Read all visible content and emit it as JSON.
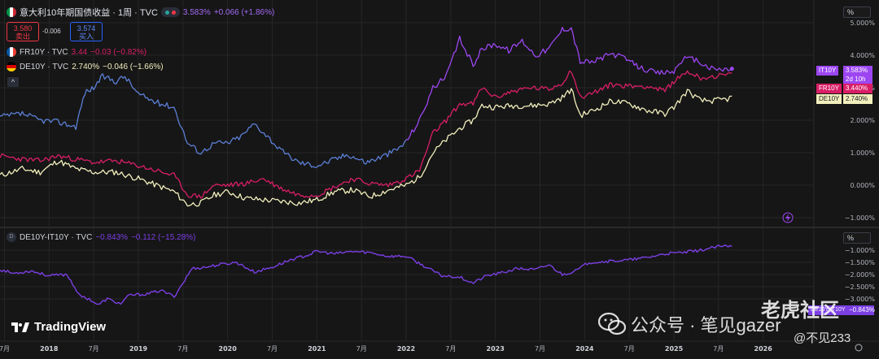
{
  "header": {
    "main_symbol": "意大利10年期国债收益 · 1周 · TVC",
    "main_value": "3.583%",
    "main_change": "+0.066 (+1.86%)",
    "sell_price": "3.580",
    "sell_label": "卖出",
    "spread": "-0.006",
    "buy_price": "3.574",
    "buy_label": "买入",
    "series_fr": "FR10Y · TVC",
    "series_fr_value": "3.44",
    "series_fr_change": "−0.03 (−0.82%)",
    "series_de": "DE10Y · TVC",
    "series_de_value": "2.740%",
    "series_de_change": "−0.046 (−1.66%)",
    "collapse": "^",
    "spread_title": "DE10Y-IT10Y · TVC",
    "spread_value": "−0.843%",
    "spread_change": "−0.112 (−15.28%)",
    "spread_icon_letter": "D"
  },
  "scale_buttons": {
    "top": "%",
    "bottom": "%"
  },
  "price_tags": {
    "it_label": "IT10Y",
    "it_value": "3.583%",
    "it_countdown": "2d 10h",
    "fr_label": "FR10Y",
    "fr_value": "3.440%",
    "de_label": "DE10Y",
    "de_value": "2.740%",
    "spread_label": "DE10Y-IT10Y",
    "spread_value": "−0.843%"
  },
  "branding": {
    "tv": "TradingView"
  },
  "watermark": {
    "community": "老虎社区",
    "wechat": "公众号 · 笔见gazer",
    "handle": "@不见233"
  },
  "colors": {
    "it": "#9c46f2",
    "it_early": "#5b7fd6",
    "fr": "#d91e66",
    "de": "#f2efbd",
    "spread": "#7b3fe4",
    "bg": "#161616",
    "grid": "#262626",
    "axis_text": "#b2b5be"
  },
  "chart_data": [
    {
      "type": "line",
      "title": "意大利10年期国债收益 · 1周 · TVC",
      "y_unit": "%",
      "ylim": [
        -1.0,
        5.0
      ],
      "y_ticks": [
        "5.000%",
        "4.000%",
        "3.000%",
        "2.000%",
        "1.000%",
        "0.000%",
        "−1.000%"
      ],
      "x_range": [
        2017.45,
        2026.55
      ],
      "x_ticks": [
        {
          "t": 2017.5,
          "label": "7月"
        },
        {
          "t": 2018.0,
          "label": "2018"
        },
        {
          "t": 2018.5,
          "label": "7月"
        },
        {
          "t": 2019.0,
          "label": "2019"
        },
        {
          "t": 2019.5,
          "label": "7月"
        },
        {
          "t": 2020.0,
          "label": "2020"
        },
        {
          "t": 2020.5,
          "label": "7月"
        },
        {
          "t": 2021.0,
          "label": "2021"
        },
        {
          "t": 2021.5,
          "label": "7月"
        },
        {
          "t": 2022.0,
          "label": "2022"
        },
        {
          "t": 2022.5,
          "label": "7月"
        },
        {
          "t": 2023.0,
          "label": "2023"
        },
        {
          "t": 2023.5,
          "label": "7月"
        },
        {
          "t": 2024.0,
          "label": "2024"
        },
        {
          "t": 2024.5,
          "label": "7月"
        },
        {
          "t": 2025.0,
          "label": "2025"
        },
        {
          "t": 2025.5,
          "label": "7月"
        },
        {
          "t": 2026.0,
          "label": "2026"
        }
      ],
      "series": [
        {
          "name": "IT10Y",
          "x": [
            2017.45,
            2017.7,
            2017.9,
            2018.1,
            2018.3,
            2018.4,
            2018.5,
            2018.6,
            2018.75,
            2018.85,
            2019.0,
            2019.2,
            2019.4,
            2019.55,
            2019.7,
            2019.85,
            2020.0,
            2020.15,
            2020.3,
            2020.45,
            2020.6,
            2020.8,
            2021.0,
            2021.15,
            2021.35,
            2021.55,
            2021.75,
            2021.9,
            2022.0,
            2022.15,
            2022.3,
            2022.45,
            2022.6,
            2022.75,
            2022.85,
            2023.0,
            2023.15,
            2023.3,
            2023.45,
            2023.6,
            2023.75,
            2023.85,
            2023.95,
            2024.1,
            2024.3,
            2024.45,
            2024.6,
            2024.8,
            2025.0,
            2025.1,
            2025.25,
            2025.4,
            2025.55,
            2025.65
          ],
          "values": [
            2.1,
            2.2,
            2.0,
            1.95,
            1.8,
            2.85,
            3.0,
            3.35,
            3.2,
            3.35,
            2.8,
            2.55,
            2.4,
            1.3,
            1.0,
            1.3,
            1.3,
            1.5,
            1.9,
            1.5,
            1.05,
            0.7,
            0.6,
            0.75,
            0.95,
            0.7,
            0.9,
            1.1,
            1.35,
            2.0,
            3.0,
            3.35,
            4.5,
            3.7,
            4.2,
            4.35,
            4.15,
            4.45,
            4.0,
            4.2,
            4.8,
            4.85,
            3.8,
            3.8,
            4.05,
            3.9,
            3.65,
            3.45,
            3.5,
            3.9,
            3.85,
            3.6,
            3.55,
            3.583
          ]
        },
        {
          "name": "FR10Y",
          "x": [
            2017.45,
            2017.7,
            2017.9,
            2018.1,
            2018.3,
            2018.5,
            2018.75,
            2019.0,
            2019.2,
            2019.4,
            2019.55,
            2019.7,
            2019.85,
            2020.0,
            2020.2,
            2020.4,
            2020.6,
            2020.8,
            2021.0,
            2021.2,
            2021.4,
            2021.6,
            2021.8,
            2022.0,
            2022.15,
            2022.3,
            2022.45,
            2022.6,
            2022.75,
            2022.85,
            2023.0,
            2023.2,
            2023.4,
            2023.6,
            2023.75,
            2023.85,
            2023.95,
            2024.1,
            2024.3,
            2024.5,
            2024.7,
            2024.9,
            2025.0,
            2025.15,
            2025.3,
            2025.45,
            2025.6,
            2025.65
          ],
          "values": [
            0.9,
            0.8,
            0.75,
            0.9,
            0.8,
            0.7,
            0.75,
            0.6,
            0.45,
            0.3,
            -0.3,
            -0.35,
            0.0,
            0.0,
            0.05,
            0.2,
            -0.1,
            -0.3,
            -0.3,
            -0.05,
            0.2,
            0.05,
            0.0,
            0.2,
            0.45,
            1.6,
            2.0,
            2.5,
            2.5,
            3.0,
            2.7,
            2.9,
            3.0,
            2.95,
            3.15,
            3.55,
            2.7,
            2.85,
            3.1,
            3.05,
            3.05,
            2.9,
            3.2,
            3.5,
            3.3,
            3.35,
            3.4,
            3.44
          ]
        },
        {
          "name": "DE10Y",
          "x": [
            2017.45,
            2017.7,
            2017.9,
            2018.1,
            2018.3,
            2018.5,
            2018.75,
            2019.0,
            2019.2,
            2019.4,
            2019.55,
            2019.7,
            2019.85,
            2020.0,
            2020.2,
            2020.4,
            2020.6,
            2020.8,
            2021.0,
            2021.2,
            2021.4,
            2021.6,
            2021.8,
            2022.0,
            2022.15,
            2022.3,
            2022.45,
            2022.6,
            2022.75,
            2022.85,
            2023.0,
            2023.2,
            2023.4,
            2023.6,
            2023.75,
            2023.85,
            2023.95,
            2024.1,
            2024.3,
            2024.5,
            2024.7,
            2024.9,
            2025.0,
            2025.15,
            2025.3,
            2025.45,
            2025.6,
            2025.65
          ],
          "values": [
            0.3,
            0.5,
            0.4,
            0.75,
            0.5,
            0.4,
            0.4,
            0.2,
            0.0,
            -0.2,
            -0.6,
            -0.55,
            -0.3,
            -0.2,
            -0.4,
            -0.45,
            -0.5,
            -0.55,
            -0.45,
            -0.2,
            -0.15,
            -0.35,
            -0.15,
            0.0,
            0.25,
            1.0,
            1.4,
            1.75,
            2.0,
            2.45,
            2.4,
            2.45,
            2.45,
            2.5,
            2.7,
            2.95,
            2.15,
            2.3,
            2.6,
            2.5,
            2.3,
            2.2,
            2.4,
            2.9,
            2.6,
            2.6,
            2.65,
            2.74
          ]
        }
      ]
    },
    {
      "type": "line",
      "title": "DE10Y-IT10Y · TVC",
      "y_unit": "%",
      "ylim": [
        -3.4,
        -0.6
      ],
      "y_ticks": [
        "−3.000%",
        "−2.500%",
        "−2.000%",
        "−1.500%",
        "−1.000%"
      ],
      "series": [
        {
          "name": "DE10Y-IT10Y",
          "x": [
            2017.45,
            2017.6,
            2017.8,
            2018.0,
            2018.2,
            2018.35,
            2018.45,
            2018.55,
            2018.65,
            2018.8,
            2018.9,
            2019.1,
            2019.25,
            2019.4,
            2019.5,
            2019.6,
            2019.75,
            2019.9,
            2020.1,
            2020.3,
            2020.5,
            2020.7,
            2020.9,
            2021.0,
            2021.2,
            2021.4,
            2021.6,
            2021.8,
            2022.0,
            2022.2,
            2022.4,
            2022.6,
            2022.75,
            2022.9,
            2023.05,
            2023.25,
            2023.45,
            2023.6,
            2023.75,
            2023.9,
            2024.05,
            2024.3,
            2024.5,
            2024.7,
            2024.9,
            2025.1,
            2025.3,
            2025.5,
            2025.65
          ],
          "values": [
            -1.8,
            -1.95,
            -1.85,
            -2.05,
            -2.0,
            -2.9,
            -3.0,
            -3.25,
            -3.0,
            -3.2,
            -2.85,
            -2.8,
            -2.65,
            -2.9,
            -2.35,
            -1.75,
            -1.7,
            -1.6,
            -1.5,
            -1.9,
            -1.7,
            -1.4,
            -1.2,
            -1.05,
            -1.15,
            -1.05,
            -1.1,
            -1.25,
            -1.25,
            -1.65,
            -2.05,
            -2.1,
            -2.35,
            -2.05,
            -1.95,
            -1.75,
            -1.8,
            -1.6,
            -2.0,
            -1.85,
            -1.5,
            -1.45,
            -1.4,
            -1.3,
            -1.15,
            -1.1,
            -1.0,
            -0.85,
            -0.843
          ]
        }
      ]
    }
  ]
}
